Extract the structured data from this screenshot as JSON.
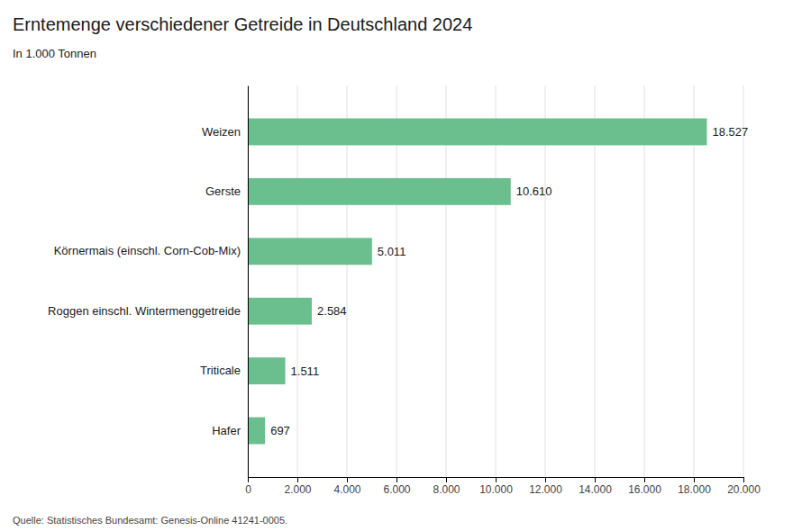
{
  "chart_data": {
    "type": "bar",
    "orientation": "horizontal",
    "title": "Erntemenge verschiedener Getreide in Deutschland 2024",
    "subtitle": "In 1.000 Tonnen",
    "annotations": [
      "Quelle: Statistisches Bundesamt: Genesis-Online 41241-0005."
    ],
    "categories": [
      "Hafer",
      "Triticale",
      "Roggen einschl. Wintermenggetreide",
      "Körnermais (einschl. Corn-Cob-Mix)",
      "Gerste",
      "Weizen"
    ],
    "values": [
      697,
      1511,
      2584,
      5011,
      10610,
      18527
    ],
    "value_labels": [
      "697",
      "1.511",
      "2.584",
      "5.011",
      "10.610",
      "18.527"
    ],
    "data_labels": true,
    "color": "#6bbf8e",
    "xlim": [
      0,
      20000
    ],
    "xticks": [
      0,
      {
        "value": 2000,
        "label": "2.000"
      },
      {
        "value": 4000,
        "label": "4.000"
      },
      {
        "value": 6000,
        "label": "6.000"
      },
      {
        "value": 8000,
        "label": "8.000"
      },
      {
        "value": 10000,
        "label": "10.000"
      },
      {
        "value": 12000,
        "label": "12.000"
      },
      {
        "value": 14000,
        "label": "14.000"
      },
      {
        "value": 16000,
        "label": "16.000"
      },
      {
        "value": 18000,
        "label": "18.000"
      },
      {
        "value": 20000,
        "label": "20.000"
      }
    ],
    "grid": true
  }
}
